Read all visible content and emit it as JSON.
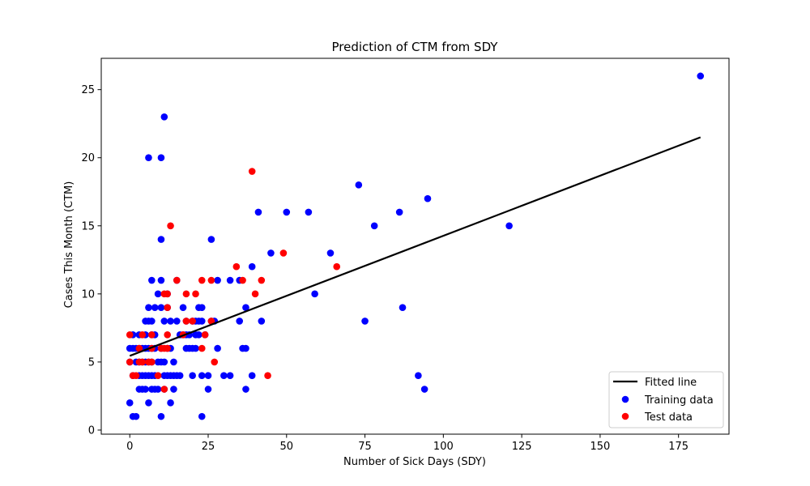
{
  "chart_data": {
    "type": "scatter",
    "title": "Prediction of CTM from SDY",
    "xlabel": "Number of Sick Days (SDY)",
    "ylabel": "Cases This Month (CTM)",
    "xlim": [
      -9.1,
      191.1
    ],
    "ylim": [
      -0.3,
      27.3
    ],
    "xticks": [
      0,
      25,
      50,
      75,
      100,
      125,
      150,
      175
    ],
    "yticks": [
      0,
      5,
      10,
      15,
      20,
      25
    ],
    "grid": false,
    "legend": "lower-right",
    "colors": {
      "fitted_line": "#000000",
      "training": "#0000ff",
      "test": "#ff0000"
    },
    "fitted_line": {
      "name": "Fitted line",
      "points": [
        [
          0,
          5.45
        ],
        [
          182,
          21.5
        ]
      ]
    },
    "series": [
      {
        "name": "Training data",
        "points": [
          [
            0,
            2
          ],
          [
            0,
            5
          ],
          [
            0,
            6
          ],
          [
            1,
            1
          ],
          [
            1,
            4
          ],
          [
            1,
            6
          ],
          [
            1,
            7
          ],
          [
            2,
            1
          ],
          [
            2,
            5
          ],
          [
            2,
            6
          ],
          [
            3,
            3
          ],
          [
            3,
            4
          ],
          [
            3,
            5
          ],
          [
            3,
            6
          ],
          [
            3,
            7
          ],
          [
            4,
            3
          ],
          [
            4,
            4
          ],
          [
            4,
            5
          ],
          [
            4,
            6
          ],
          [
            5,
            3
          ],
          [
            5,
            4
          ],
          [
            5,
            5
          ],
          [
            5,
            6
          ],
          [
            5,
            7
          ],
          [
            5,
            8
          ],
          [
            6,
            2
          ],
          [
            6,
            4
          ],
          [
            6,
            5
          ],
          [
            6,
            6
          ],
          [
            6,
            8
          ],
          [
            6,
            9
          ],
          [
            6,
            20
          ],
          [
            7,
            3
          ],
          [
            7,
            4
          ],
          [
            7,
            5
          ],
          [
            7,
            6
          ],
          [
            7,
            7
          ],
          [
            7,
            8
          ],
          [
            7,
            11
          ],
          [
            8,
            3
          ],
          [
            8,
            4
          ],
          [
            8,
            6
          ],
          [
            8,
            7
          ],
          [
            8,
            9
          ],
          [
            9,
            3
          ],
          [
            9,
            5
          ],
          [
            9,
            10
          ],
          [
            10,
            1
          ],
          [
            10,
            5
          ],
          [
            10,
            6
          ],
          [
            10,
            9
          ],
          [
            10,
            11
          ],
          [
            10,
            14
          ],
          [
            10,
            20
          ],
          [
            11,
            3
          ],
          [
            11,
            4
          ],
          [
            11,
            5
          ],
          [
            11,
            8
          ],
          [
            11,
            23
          ],
          [
            12,
            4
          ],
          [
            12,
            6
          ],
          [
            12,
            9
          ],
          [
            12,
            10
          ],
          [
            13,
            2
          ],
          [
            13,
            4
          ],
          [
            13,
            6
          ],
          [
            13,
            8
          ],
          [
            14,
            3
          ],
          [
            14,
            4
          ],
          [
            14,
            5
          ],
          [
            15,
            4
          ],
          [
            15,
            8
          ],
          [
            15,
            11
          ],
          [
            16,
            4
          ],
          [
            16,
            7
          ],
          [
            17,
            7
          ],
          [
            17,
            9
          ],
          [
            18,
            6
          ],
          [
            18,
            7
          ],
          [
            18,
            8
          ],
          [
            19,
            6
          ],
          [
            19,
            7
          ],
          [
            20,
            4
          ],
          [
            20,
            6
          ],
          [
            20,
            8
          ],
          [
            21,
            6
          ],
          [
            21,
            7
          ],
          [
            21,
            8
          ],
          [
            22,
            7
          ],
          [
            22,
            8
          ],
          [
            22,
            9
          ],
          [
            23,
            1
          ],
          [
            23,
            4
          ],
          [
            23,
            8
          ],
          [
            23,
            9
          ],
          [
            24,
            7
          ],
          [
            25,
            3
          ],
          [
            25,
            4
          ],
          [
            26,
            8
          ],
          [
            26,
            14
          ],
          [
            27,
            8
          ],
          [
            28,
            6
          ],
          [
            28,
            11
          ],
          [
            30,
            4
          ],
          [
            32,
            4
          ],
          [
            32,
            11
          ],
          [
            35,
            8
          ],
          [
            35,
            11
          ],
          [
            36,
            6
          ],
          [
            37,
            3
          ],
          [
            37,
            6
          ],
          [
            37,
            9
          ],
          [
            39,
            4
          ],
          [
            39,
            12
          ],
          [
            41,
            16
          ],
          [
            42,
            8
          ],
          [
            45,
            13
          ],
          [
            50,
            16
          ],
          [
            57,
            16
          ],
          [
            59,
            10
          ],
          [
            64,
            13
          ],
          [
            73,
            18
          ],
          [
            75,
            8
          ],
          [
            78,
            15
          ],
          [
            86,
            16
          ],
          [
            87,
            9
          ],
          [
            92,
            4
          ],
          [
            94,
            3
          ],
          [
            95,
            17
          ],
          [
            121,
            15
          ],
          [
            182,
            26
          ]
        ]
      },
      {
        "name": "Test data",
        "points": [
          [
            0,
            5
          ],
          [
            0,
            7
          ],
          [
            1,
            4
          ],
          [
            2,
            4
          ],
          [
            3,
            5
          ],
          [
            3,
            6
          ],
          [
            4,
            5
          ],
          [
            4,
            7
          ],
          [
            6,
            5
          ],
          [
            7,
            5
          ],
          [
            7,
            6
          ],
          [
            7,
            7
          ],
          [
            9,
            4
          ],
          [
            10,
            6
          ],
          [
            11,
            3
          ],
          [
            11,
            6
          ],
          [
            11,
            10
          ],
          [
            12,
            6
          ],
          [
            12,
            7
          ],
          [
            12,
            9
          ],
          [
            12,
            10
          ],
          [
            13,
            15
          ],
          [
            15,
            11
          ],
          [
            17,
            7
          ],
          [
            18,
            8
          ],
          [
            18,
            10
          ],
          [
            20,
            8
          ],
          [
            21,
            10
          ],
          [
            23,
            6
          ],
          [
            23,
            11
          ],
          [
            24,
            7
          ],
          [
            26,
            8
          ],
          [
            26,
            11
          ],
          [
            27,
            5
          ],
          [
            34,
            12
          ],
          [
            36,
            11
          ],
          [
            39,
            19
          ],
          [
            40,
            10
          ],
          [
            42,
            11
          ],
          [
            44,
            4
          ],
          [
            49,
            13
          ],
          [
            66,
            12
          ]
        ]
      }
    ]
  }
}
